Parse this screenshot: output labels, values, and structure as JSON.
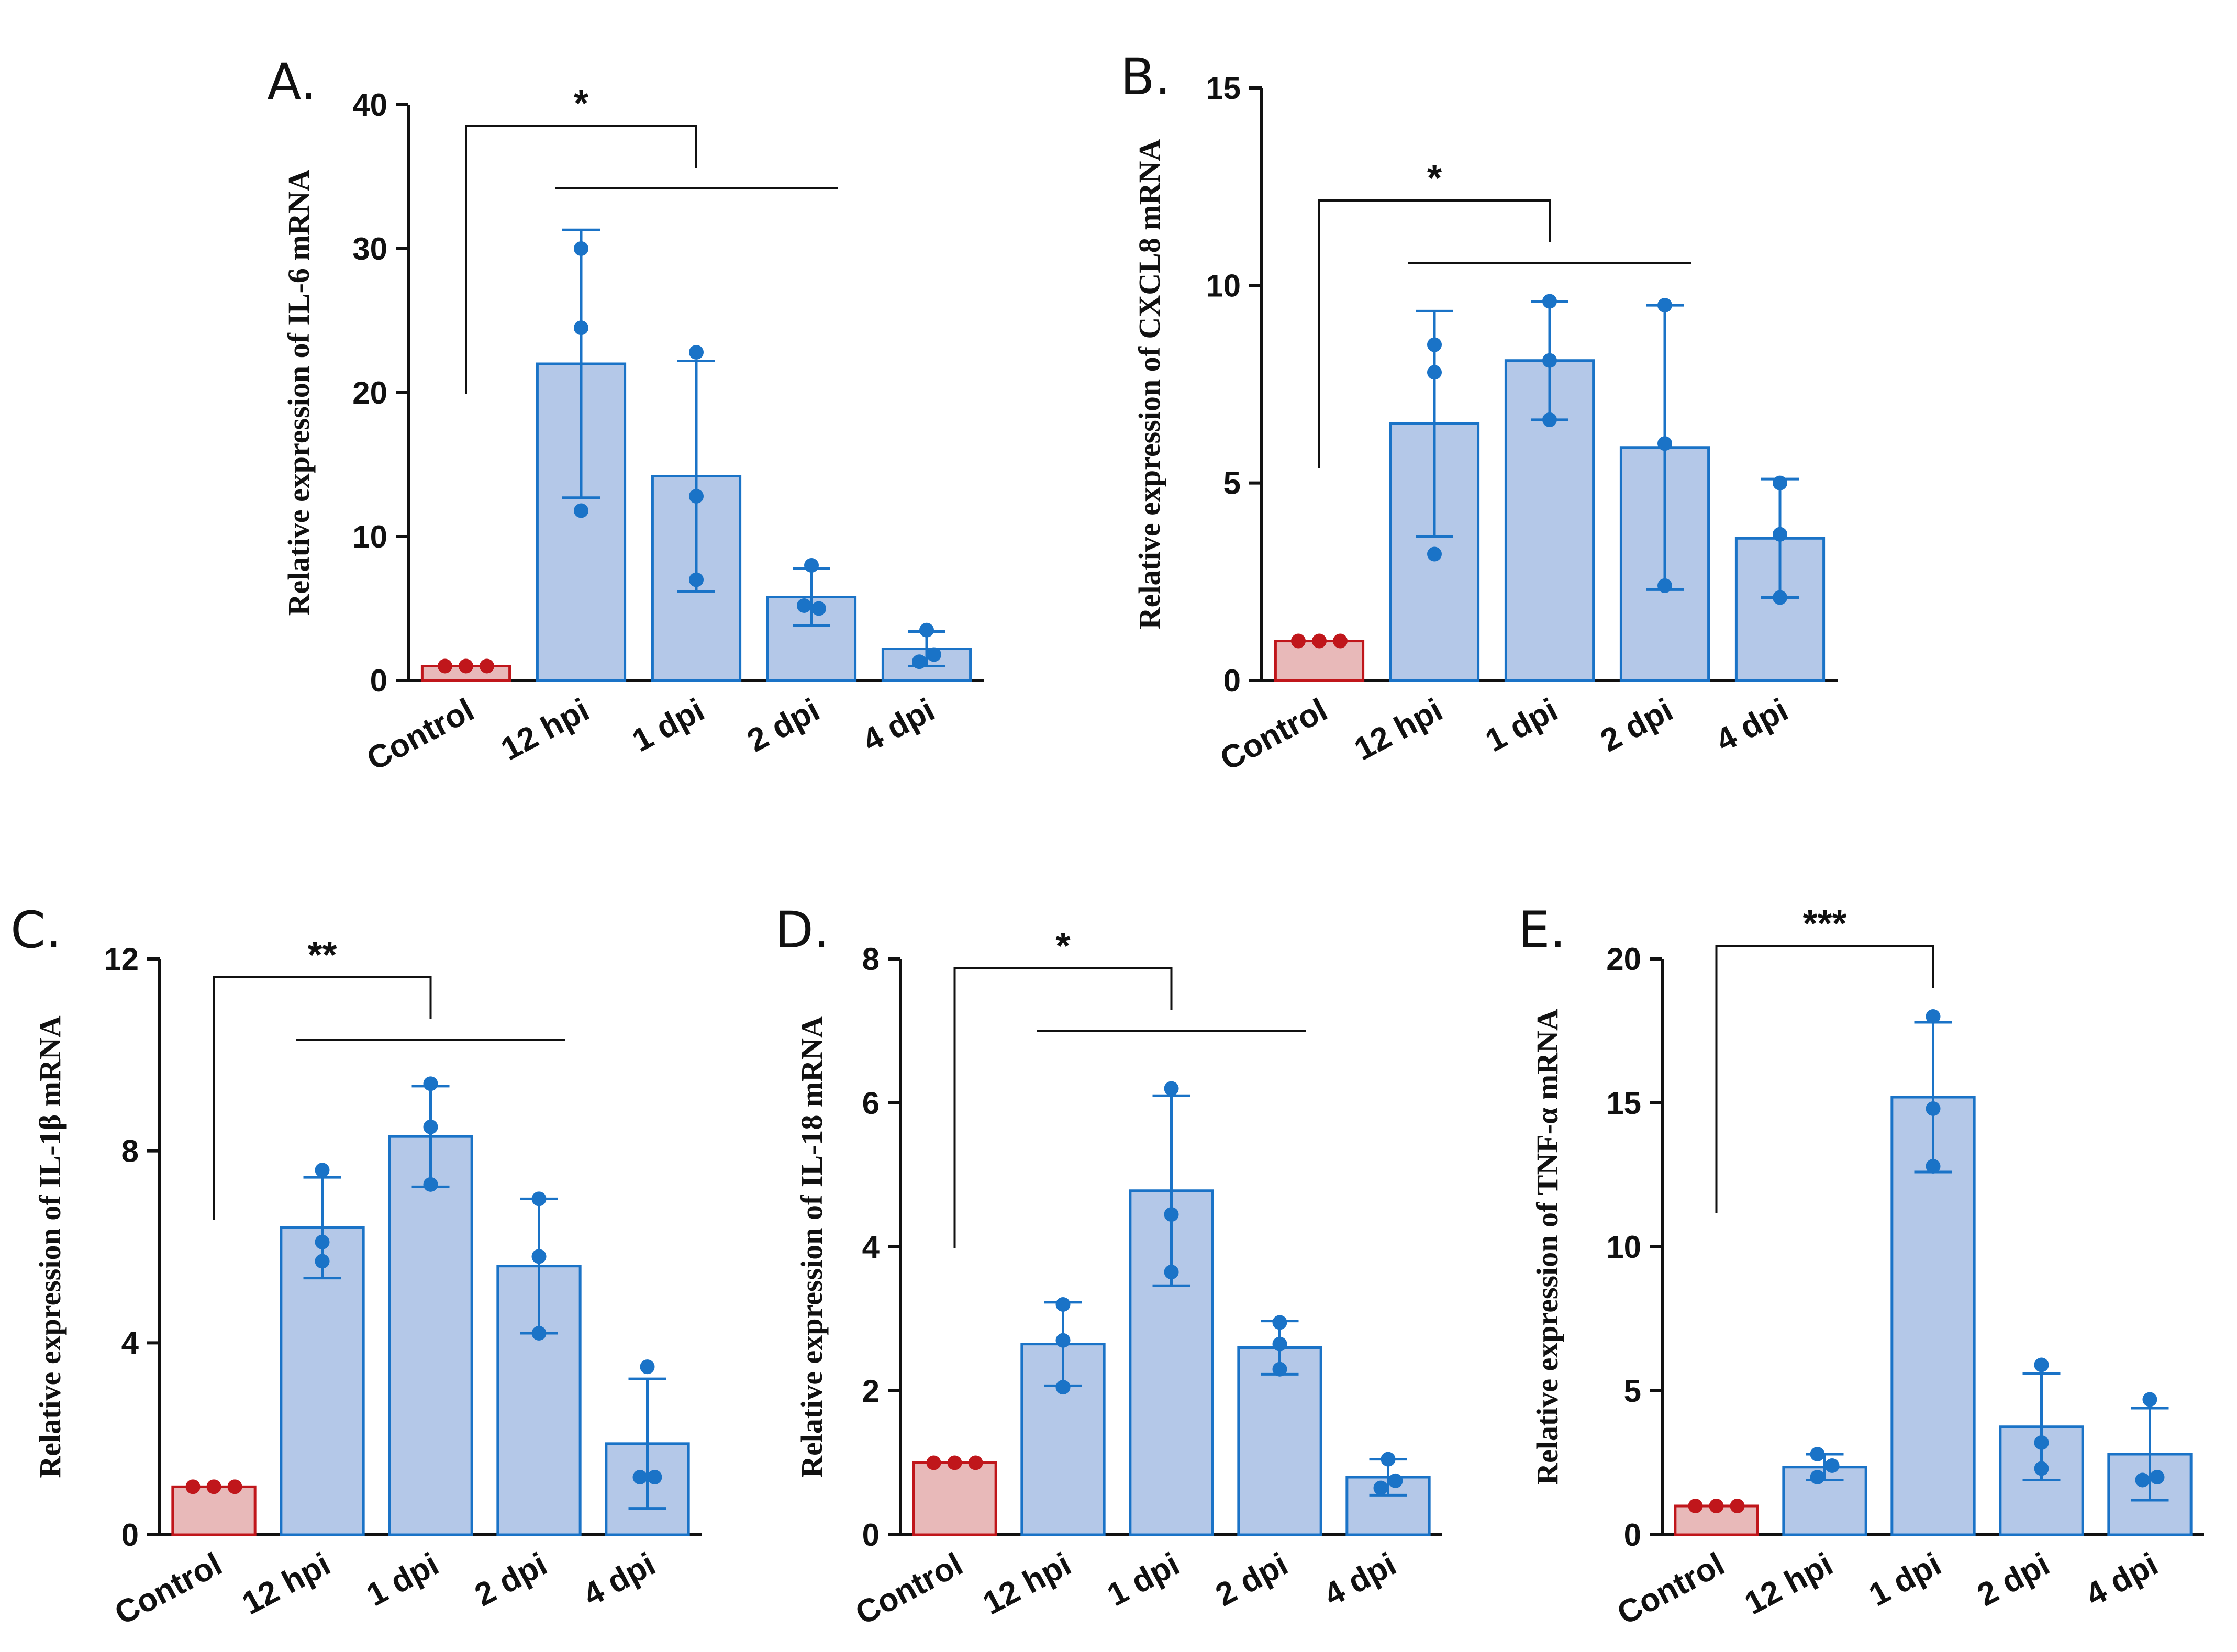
{
  "figure": {
    "colors": {
      "control_fill": "#e8b9b9",
      "control_edge": "#c0161b",
      "treated_fill": "#b4c8e8",
      "treated_edge": "#1a73c7",
      "point": "#1a73c7",
      "control_point": "#c0161b",
      "axis": "#111111"
    }
  },
  "chart_data": [
    {
      "panel": "A.",
      "type": "bar",
      "ylabel": "Relative  expression of IL-6 mRNA",
      "categories": [
        "Control",
        "12 hpi",
        "1 dpi",
        "2 dpi",
        "4 dpi"
      ],
      "values": [
        1.0,
        22.0,
        14.2,
        5.8,
        2.2
      ],
      "error": [
        0,
        9.3,
        8.0,
        2.0,
        1.2
      ],
      "points": [
        [
          1,
          1,
          1
        ],
        [
          30.0,
          24.5,
          11.8
        ],
        [
          22.8,
          12.8,
          7.0
        ],
        [
          8.0,
          5.0,
          5.2
        ],
        [
          3.5,
          1.8,
          1.3
        ]
      ],
      "yticks": [
        "0",
        "10",
        "20",
        "30",
        "40"
      ],
      "ylim": [
        0,
        40
      ],
      "significance": [
        {
          "label": "*",
          "from": 0,
          "to": 2,
          "group_from": 1,
          "group_to": 3
        }
      ]
    },
    {
      "panel": "B.",
      "type": "bar",
      "ylabel": "Relative  expression of CXCL8 mRNA",
      "categories": [
        "Control",
        "12 hpi",
        "1 dpi",
        "2 dpi",
        "4 dpi"
      ],
      "values": [
        1.0,
        6.5,
        8.1,
        5.9,
        3.6
      ],
      "error": [
        0,
        2.85,
        1.5,
        3.6,
        1.5
      ],
      "points": [
        [
          1,
          1,
          1
        ],
        [
          8.5,
          7.8,
          3.2
        ],
        [
          9.6,
          8.1,
          6.6
        ],
        [
          9.5,
          6.0,
          2.4
        ],
        [
          5.0,
          3.7,
          2.1
        ]
      ],
      "yticks": [
        "0",
        "5",
        "10",
        "15"
      ],
      "ylim": [
        0,
        15
      ],
      "significance": [
        {
          "label": "*",
          "from": 0,
          "to": 2,
          "group_from": 1,
          "group_to": 3
        }
      ]
    },
    {
      "panel": "C.",
      "type": "bar",
      "ylabel": "Relative  expression of IL-1β mRNA",
      "categories": [
        "Control",
        "12 hpi",
        "1 dpi",
        "2 dpi",
        "4 dpi"
      ],
      "values": [
        1.0,
        6.4,
        8.3,
        5.6,
        1.9
      ],
      "error": [
        0,
        1.05,
        1.05,
        1.4,
        1.35
      ],
      "points": [
        [
          1,
          1,
          1
        ],
        [
          7.6,
          6.1,
          5.7
        ],
        [
          9.4,
          8.5,
          7.3
        ],
        [
          7.0,
          5.8,
          4.2
        ],
        [
          3.5,
          1.2,
          1.2
        ]
      ],
      "yticks": [
        "0",
        "4",
        "8",
        "12"
      ],
      "ylim": [
        0,
        12
      ],
      "significance": [
        {
          "label": "**",
          "from": 0,
          "to": 2,
          "group_from": 1,
          "group_to": 3
        }
      ]
    },
    {
      "panel": "D.",
      "type": "bar",
      "ylabel": "Relative  expression of IL-18 mRNA",
      "categories": [
        "Control",
        "12 hpi",
        "1 dpi",
        "2 dpi",
        "4 dpi"
      ],
      "values": [
        1.0,
        2.65,
        4.78,
        2.6,
        0.8
      ],
      "error": [
        0,
        0.58,
        1.32,
        0.37,
        0.25
      ],
      "points": [
        [
          1,
          1,
          1
        ],
        [
          3.2,
          2.7,
          2.05
        ],
        [
          6.2,
          4.45,
          3.65
        ],
        [
          2.95,
          2.65,
          2.3
        ],
        [
          1.05,
          0.75,
          0.65
        ]
      ],
      "yticks": [
        "0",
        "2",
        "4",
        "6",
        "8"
      ],
      "ylim": [
        0,
        8
      ],
      "significance": [
        {
          "label": "*",
          "from": 0,
          "to": 2,
          "group_from": 1,
          "group_to": 3
        }
      ]
    },
    {
      "panel": "E.",
      "type": "bar",
      "ylabel": "Relative  expression of TNF-α mRNA",
      "categories": [
        "Control",
        "12 hpi",
        "1 dpi",
        "2 dpi",
        "4 dpi"
      ],
      "values": [
        1.0,
        2.35,
        15.2,
        3.75,
        2.8
      ],
      "error": [
        0,
        0.45,
        2.6,
        1.85,
        1.6
      ],
      "points": [
        [
          1,
          1,
          1
        ],
        [
          2.8,
          2.4,
          2.0
        ],
        [
          18.0,
          14.8,
          12.8
        ],
        [
          5.9,
          3.2,
          2.3
        ],
        [
          4.7,
          2.0,
          1.9
        ]
      ],
      "yticks": [
        "0",
        "5",
        "10",
        "15",
        "20"
      ],
      "ylim": [
        0,
        20
      ],
      "significance": [
        {
          "label": "***",
          "from": 0,
          "to": 2
        }
      ]
    }
  ]
}
